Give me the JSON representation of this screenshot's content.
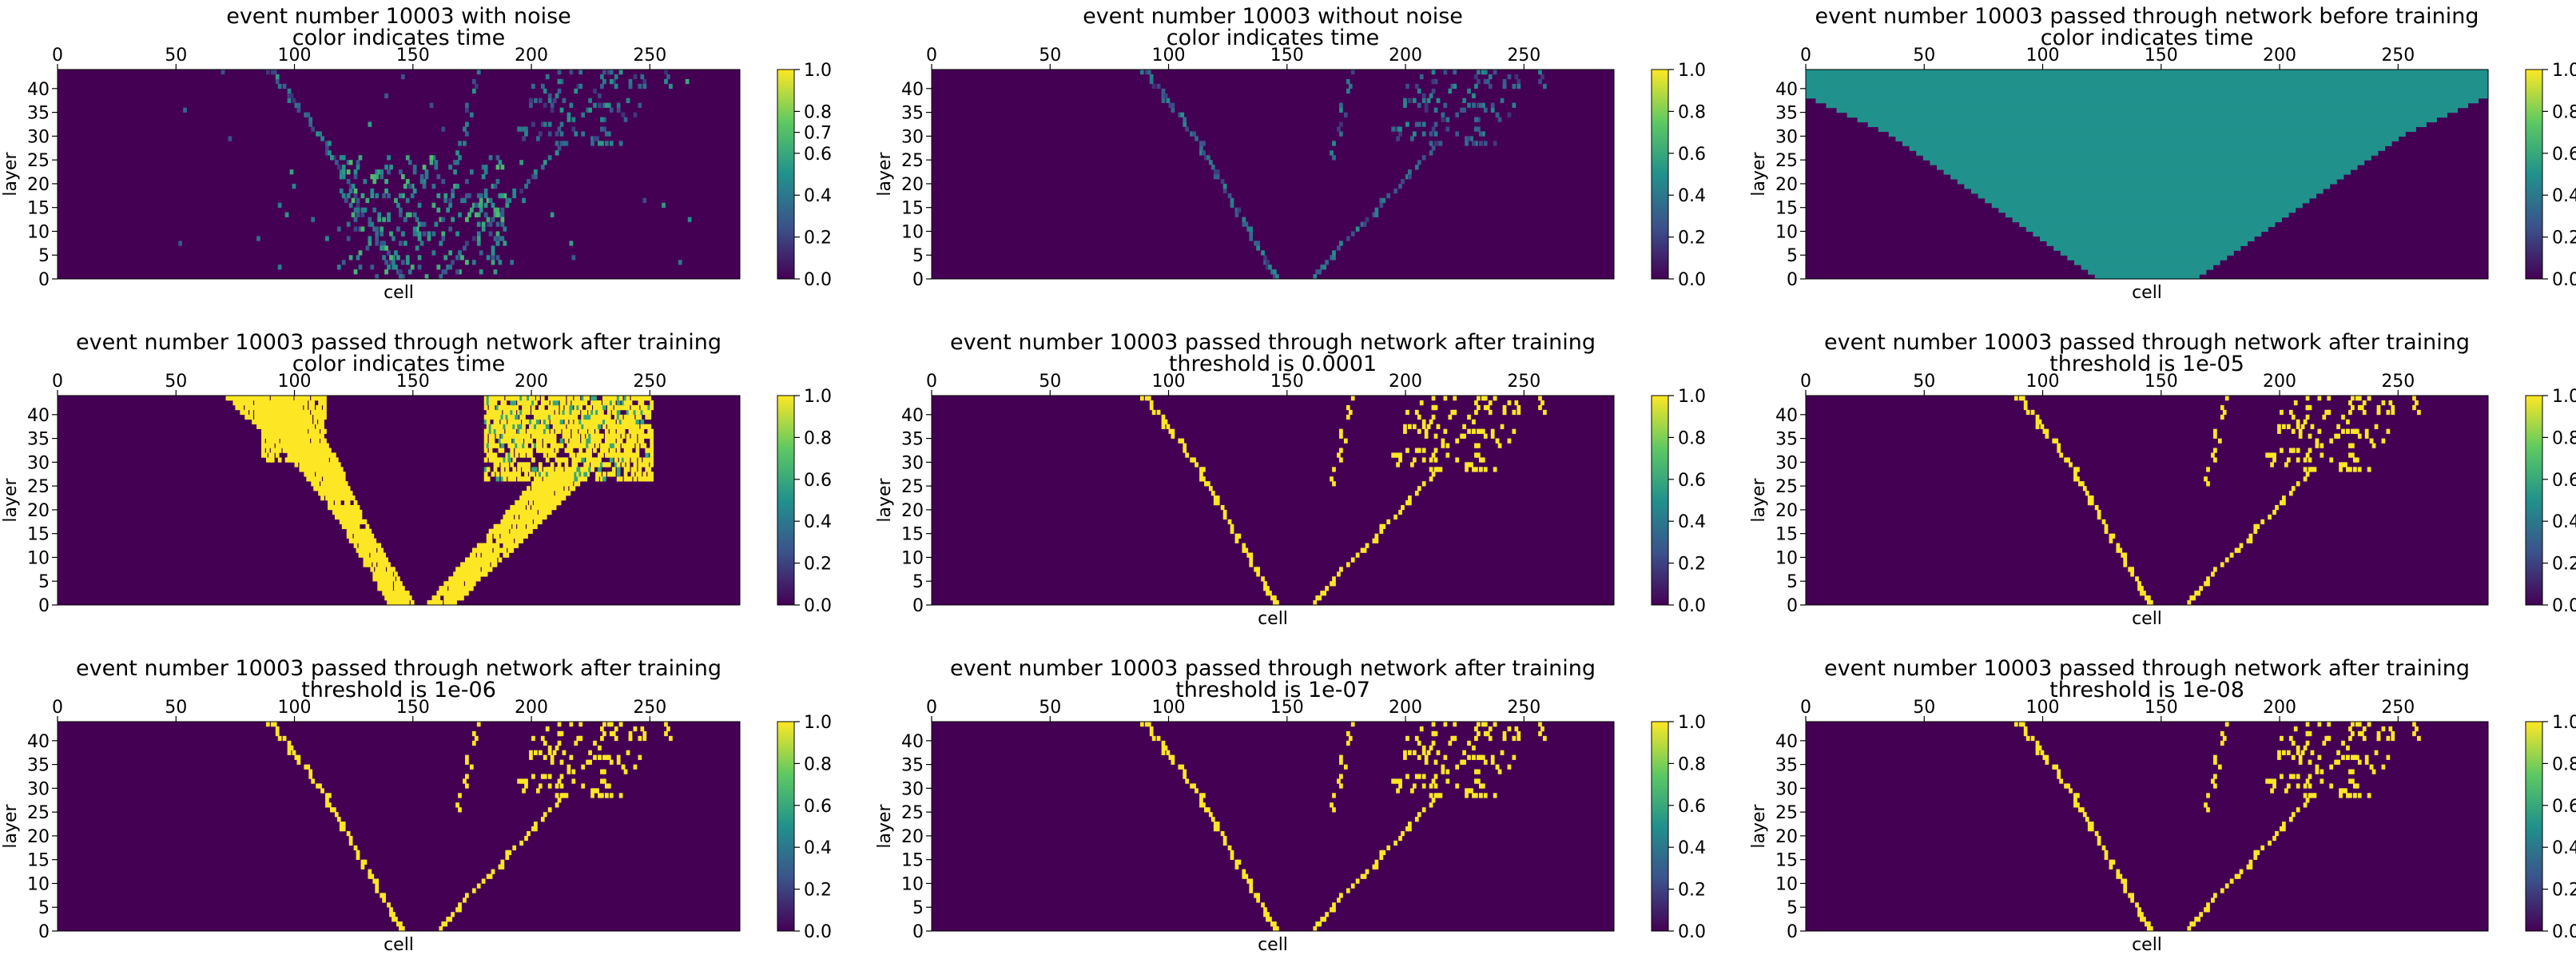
{
  "figure": {
    "colorscale": [
      "#440154",
      "#3b528b",
      "#21918c",
      "#5ec962",
      "#fde725"
    ]
  },
  "chart_data": [
    {
      "type": "heatmap",
      "title_line1": "event number 10003 with noise",
      "title_line2": "color indicates time",
      "xlabel": "cell",
      "ylabel": "layer",
      "xlim": [
        0,
        288
      ],
      "ylim": [
        0,
        44
      ],
      "xticks": [
        0,
        50,
        100,
        150,
        200,
        250
      ],
      "yticks": [
        0,
        5,
        10,
        15,
        20,
        25,
        30,
        35,
        40
      ],
      "colorbar": {
        "ticks": [
          "0.0",
          "0.2",
          "0.4",
          "0.6",
          "0.7",
          "0.8",
          "1.0"
        ]
      },
      "pattern": "noisy",
      "background_value": 0.0
    },
    {
      "type": "heatmap",
      "title_line1": "event number 10003 without noise",
      "title_line2": "color indicates time",
      "xlabel": "",
      "ylabel": "layer",
      "xlim": [
        0,
        288
      ],
      "ylim": [
        0,
        44
      ],
      "xticks": [
        0,
        50,
        100,
        150,
        200,
        250
      ],
      "yticks": [
        0,
        5,
        10,
        15,
        20,
        25,
        30,
        35,
        40
      ],
      "colorbar": {
        "ticks": [
          "0.0",
          "0.2",
          "0.4",
          "0.6",
          "0.8",
          "1.0"
        ]
      },
      "pattern": "clean",
      "background_value": 0.0
    },
    {
      "type": "heatmap",
      "title_line1": "event number 10003 passed through network before training",
      "title_line2": "color indicates time",
      "xlabel": "cell",
      "ylabel": "layer",
      "xlim": [
        0,
        288
      ],
      "ylim": [
        0,
        44
      ],
      "xticks": [
        0,
        50,
        100,
        150,
        200,
        250
      ],
      "yticks": [
        0,
        5,
        10,
        15,
        20,
        25,
        30,
        35,
        40
      ],
      "colorbar": {
        "ticks": [
          "0.0",
          "0.2",
          "0.4",
          "0.6",
          "0.8",
          "1.0"
        ]
      },
      "pattern": "cone",
      "fill_value": 0.5,
      "background_value": 0.0
    },
    {
      "type": "heatmap",
      "title_line1": "event number 10003 passed through network after training",
      "title_line2": "color indicates time",
      "xlabel": "",
      "ylabel": "layer",
      "xlim": [
        0,
        288
      ],
      "ylim": [
        0,
        44
      ],
      "xticks": [
        0,
        50,
        100,
        150,
        200,
        250
      ],
      "yticks": [
        0,
        5,
        10,
        15,
        20,
        25,
        30,
        35,
        40
      ],
      "colorbar": {
        "ticks": [
          "0.0",
          "0.2",
          "0.4",
          "0.6",
          "0.8",
          "1.0"
        ]
      },
      "pattern": "broad",
      "background_value": 0.0
    },
    {
      "type": "heatmap",
      "title_line1": "event number 10003 passed through network after training",
      "title_line2": "threshold is 0.0001",
      "xlabel": "cell",
      "ylabel": "layer",
      "xlim": [
        0,
        288
      ],
      "ylim": [
        0,
        44
      ],
      "xticks": [
        0,
        50,
        100,
        150,
        200,
        250
      ],
      "yticks": [
        0,
        5,
        10,
        15,
        20,
        25,
        30,
        35,
        40
      ],
      "colorbar": {
        "ticks": [
          "0.0",
          "0.2",
          "0.4",
          "0.6",
          "0.8",
          "1.0"
        ]
      },
      "pattern": "thresh",
      "background_value": 0.0
    },
    {
      "type": "heatmap",
      "title_line1": "event number 10003 passed through network after training",
      "title_line2": "threshold is 1e-05",
      "xlabel": "cell",
      "ylabel": "layer",
      "xlim": [
        0,
        288
      ],
      "ylim": [
        0,
        44
      ],
      "xticks": [
        0,
        50,
        100,
        150,
        200,
        250
      ],
      "yticks": [
        0,
        5,
        10,
        15,
        20,
        25,
        30,
        35,
        40
      ],
      "colorbar": {
        "ticks": [
          "0.0",
          "0.2",
          "0.4",
          "0.6",
          "0.8",
          "1.0"
        ]
      },
      "pattern": "thresh",
      "background_value": 0.0
    },
    {
      "type": "heatmap",
      "title_line1": "event number 10003 passed through network after training",
      "title_line2": "threshold is 1e-06",
      "xlabel": "cell",
      "ylabel": "layer",
      "xlim": [
        0,
        288
      ],
      "ylim": [
        0,
        44
      ],
      "xticks": [
        0,
        50,
        100,
        150,
        200,
        250
      ],
      "yticks": [
        0,
        5,
        10,
        15,
        20,
        25,
        30,
        35,
        40
      ],
      "colorbar": {
        "ticks": [
          "0.0",
          "0.2",
          "0.4",
          "0.6",
          "0.8",
          "1.0"
        ]
      },
      "pattern": "thresh",
      "background_value": 0.0
    },
    {
      "type": "heatmap",
      "title_line1": "event number 10003 passed through network after training",
      "title_line2": "threshold is 1e-07",
      "xlabel": "cell",
      "ylabel": "layer",
      "xlim": [
        0,
        288
      ],
      "ylim": [
        0,
        44
      ],
      "xticks": [
        0,
        50,
        100,
        150,
        200,
        250
      ],
      "yticks": [
        0,
        5,
        10,
        15,
        20,
        25,
        30,
        35,
        40
      ],
      "colorbar": {
        "ticks": [
          "0.0",
          "0.2",
          "0.4",
          "0.6",
          "0.8",
          "1.0"
        ]
      },
      "pattern": "thresh",
      "background_value": 0.0
    },
    {
      "type": "heatmap",
      "title_line1": "event number 10003 passed through network after training",
      "title_line2": "threshold is 1e-08",
      "xlabel": "cell",
      "ylabel": "layer",
      "xlim": [
        0,
        288
      ],
      "ylim": [
        0,
        44
      ],
      "xticks": [
        0,
        50,
        100,
        150,
        200,
        250
      ],
      "yticks": [
        0,
        5,
        10,
        15,
        20,
        25,
        30,
        35,
        40
      ],
      "colorbar": {
        "ticks": [
          "0.0",
          "0.2",
          "0.4",
          "0.6",
          "0.8",
          "1.0"
        ]
      },
      "pattern": "thresh",
      "background_value": 0.0
    }
  ]
}
